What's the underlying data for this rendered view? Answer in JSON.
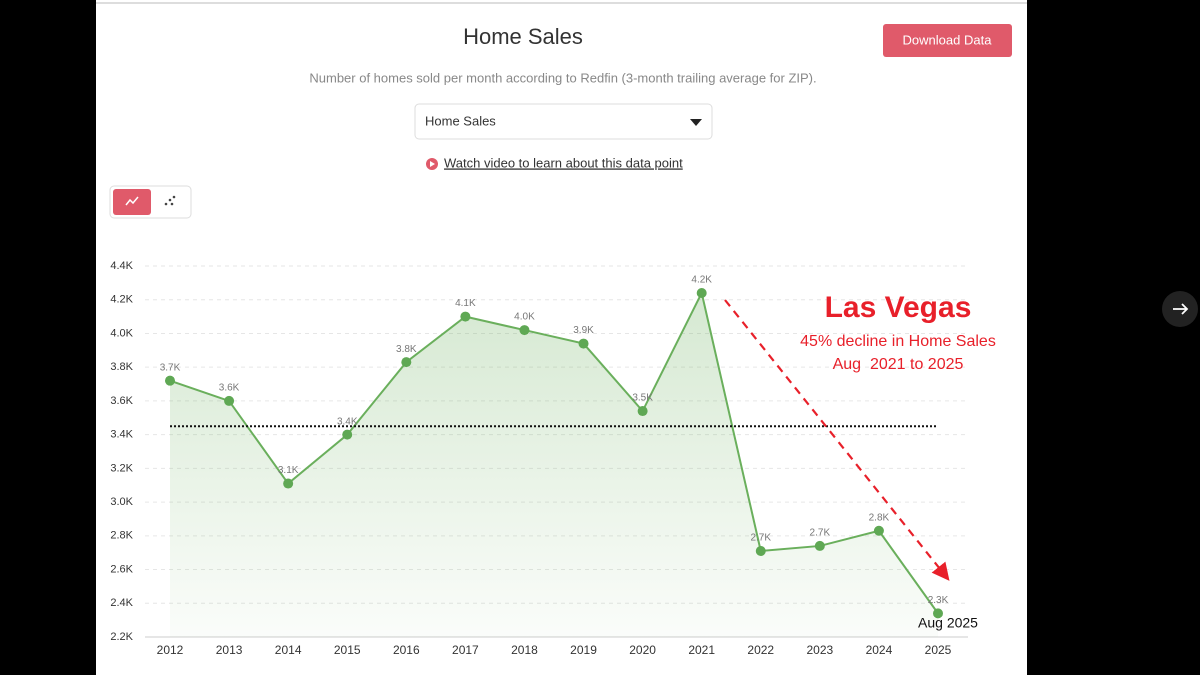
{
  "header": {
    "title": "Home Sales",
    "subtitle": "Number of homes sold per month according to Redfin (3-month trailing average for ZIP).",
    "download_button": "Download Data",
    "dropdown": "Home Sales",
    "video_link": "Watch video to learn about this data point"
  },
  "chart_data": {
    "type": "line",
    "categories": [
      "2012",
      "2013",
      "2014",
      "2015",
      "2016",
      "2017",
      "2018",
      "2019",
      "2020",
      "2021",
      "2022",
      "2023",
      "2024",
      "2025"
    ],
    "values": [
      3720,
      3600,
      3110,
      3400,
      3830,
      4100,
      4020,
      3940,
      3540,
      4240,
      2710,
      2740,
      2830,
      2340
    ],
    "value_labels": [
      "3.7K",
      "3.6K",
      "3.1K",
      "3.4K",
      "3.8K",
      "4.1K",
      "4.0K",
      "3.9K",
      "3.5K",
      "4.2K",
      "2.7K",
      "2.7K",
      "2.8K",
      "2.3K"
    ],
    "color": "#6aaf5c",
    "ylim": [
      2200,
      4400
    ],
    "yticks": [
      {
        "value": 2200,
        "label": "2.2K"
      },
      {
        "value": 2400,
        "label": "2.4K"
      },
      {
        "value": 2600,
        "label": "2.6K"
      },
      {
        "value": 2800,
        "label": "2.8K"
      },
      {
        "value": 3000,
        "label": "3.0K"
      },
      {
        "value": 3200,
        "label": "3.2K"
      },
      {
        "value": 3400,
        "label": "3.4K"
      },
      {
        "value": 3600,
        "label": "3.6K"
      },
      {
        "value": 3800,
        "label": "3.8K"
      },
      {
        "value": 4000,
        "label": "4.0K"
      },
      {
        "value": 4200,
        "label": "4.2K"
      },
      {
        "value": 4400,
        "label": "4.4K"
      }
    ],
    "grid": true,
    "reference_line": 3450,
    "annotations": {
      "city": "Las Vegas",
      "decline": "45% decline in Home Sales",
      "period": "Aug  2021 to 2025",
      "last_point": "Aug 2025"
    }
  }
}
